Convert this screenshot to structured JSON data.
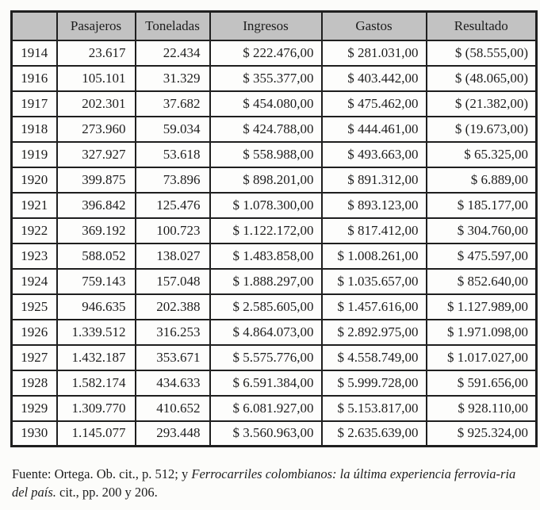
{
  "colors": {
    "header_bg": "#c2c2c2",
    "border": "#1f1f1f",
    "text": "#1d1d1d",
    "background": "#fcfcfa"
  },
  "table": {
    "columns": [
      "",
      "Pasajeros",
      "Toneladas",
      "Ingresos",
      "Gastos",
      "Resultado"
    ],
    "rows": [
      {
        "year": "1914",
        "pasajeros": "23.617",
        "toneladas": "22.434",
        "ingresos": "$ 222.476,00",
        "gastos": "$ 281.031,00",
        "resultado": "$ (58.555,00)"
      },
      {
        "year": "1916",
        "pasajeros": "105.101",
        "toneladas": "31.329",
        "ingresos": "$ 355.377,00",
        "gastos": "$ 403.442,00",
        "resultado": "$ (48.065,00)"
      },
      {
        "year": "1917",
        "pasajeros": "202.301",
        "toneladas": "37.682",
        "ingresos": "$ 454.080,00",
        "gastos": "$ 475.462,00",
        "resultado": "$ (21.382,00)"
      },
      {
        "year": "1918",
        "pasajeros": "273.960",
        "toneladas": "59.034",
        "ingresos": "$ 424.788,00",
        "gastos": "$ 444.461,00",
        "resultado": "$ (19.673,00)"
      },
      {
        "year": "1919",
        "pasajeros": "327.927",
        "toneladas": "53.618",
        "ingresos": "$ 558.988,00",
        "gastos": "$ 493.663,00",
        "resultado": "$ 65.325,00"
      },
      {
        "year": "1920",
        "pasajeros": "399.875",
        "toneladas": "73.896",
        "ingresos": "$ 898.201,00",
        "gastos": "$ 891.312,00",
        "resultado": "$ 6.889,00"
      },
      {
        "year": "1921",
        "pasajeros": "396.842",
        "toneladas": "125.476",
        "ingresos": "$ 1.078.300,00",
        "gastos": "$ 893.123,00",
        "resultado": "$ 185.177,00"
      },
      {
        "year": "1922",
        "pasajeros": "369.192",
        "toneladas": "100.723",
        "ingresos": "$ 1.122.172,00",
        "gastos": "$ 817.412,00",
        "resultado": "$ 304.760,00"
      },
      {
        "year": "1923",
        "pasajeros": "588.052",
        "toneladas": "138.027",
        "ingresos": "$ 1.483.858,00",
        "gastos": "$ 1.008.261,00",
        "resultado": "$ 475.597,00"
      },
      {
        "year": "1924",
        "pasajeros": "759.143",
        "toneladas": "157.048",
        "ingresos": "$ 1.888.297,00",
        "gastos": "$ 1.035.657,00",
        "resultado": "$ 852.640,00"
      },
      {
        "year": "1925",
        "pasajeros": "946.635",
        "toneladas": "202.388",
        "ingresos": "$ 2.585.605,00",
        "gastos": "$ 1.457.616,00",
        "resultado": "$ 1.127.989,00"
      },
      {
        "year": "1926",
        "pasajeros": "1.339.512",
        "toneladas": "316.253",
        "ingresos": "$ 4.864.073,00",
        "gastos": "$ 2.892.975,00",
        "resultado": "$ 1.971.098,00"
      },
      {
        "year": "1927",
        "pasajeros": "1.432.187",
        "toneladas": "353.671",
        "ingresos": "$ 5.575.776,00",
        "gastos": "$ 4.558.749,00",
        "resultado": "$ 1.017.027,00"
      },
      {
        "year": "1928",
        "pasajeros": "1.582.174",
        "toneladas": "434.633",
        "ingresos": "$ 6.591.384,00",
        "gastos": "$ 5.999.728,00",
        "resultado": "$ 591.656,00"
      },
      {
        "year": "1929",
        "pasajeros": "1.309.770",
        "toneladas": "410.652",
        "ingresos": "$ 6.081.927,00",
        "gastos": "$ 5.153.817,00",
        "resultado": "$ 928.110,00"
      },
      {
        "year": "1930",
        "pasajeros": "1.145.077",
        "toneladas": "293.448",
        "ingresos": "$ 3.560.963,00",
        "gastos": "$ 2.635.639,00",
        "resultado": "$ 925.324,00"
      }
    ]
  },
  "footer": {
    "regular_1": "Fuente: Ortega. Ob. cit., p. 512; y ",
    "italic": "Ferrocarriles colombianos: la última experiencia ferrovia-ria del país.",
    "regular_2": " cit., pp. 200 y 206."
  }
}
